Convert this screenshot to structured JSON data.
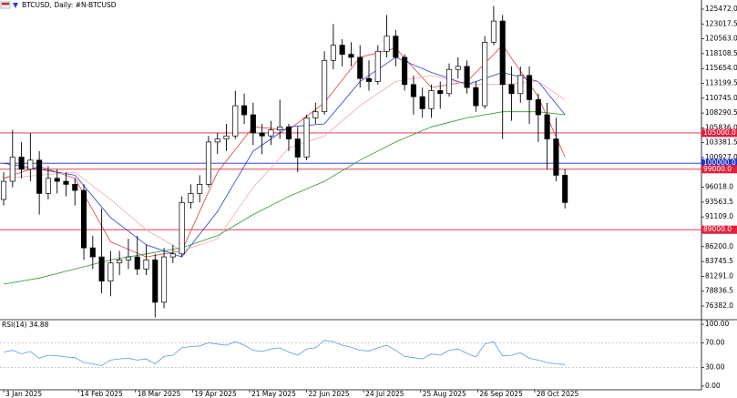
{
  "chart_data": [
    {
      "type": "candlestick",
      "title": "BTCUSD, Daily:  #N-BTCUSD",
      "open": [
        94000,
        97000,
        101000,
        99000,
        100500,
        95000,
        97500,
        97000,
        96500,
        95500,
        86000,
        84500,
        80500,
        83500,
        84000,
        84500,
        82500,
        84000,
        77000,
        84500,
        85000,
        93500,
        95000,
        96500,
        103500,
        104000,
        104500,
        109500,
        108000,
        105000,
        104500,
        105500,
        106000,
        104000,
        101000,
        107500,
        108500,
        117000,
        119500,
        118000,
        117500,
        114000,
        113500,
        118500,
        121000,
        117500,
        113000,
        111000,
        109000,
        112000,
        111500,
        115500,
        116000,
        112500,
        109500,
        120000,
        123500,
        113000,
        111500,
        114500,
        110500,
        108000,
        104000,
        98000
      ],
      "high": [
        98500,
        105500,
        103500,
        105000,
        102000,
        99500,
        99000,
        98500,
        97500,
        96500,
        88000,
        92500,
        85500,
        85500,
        87500,
        88000,
        86500,
        85000,
        86000,
        86500,
        94500,
        96500,
        98000,
        104500,
        105000,
        106500,
        112000,
        111500,
        110000,
        106500,
        107000,
        110500,
        106500,
        106000,
        108000,
        110000,
        118500,
        123000,
        120500,
        120000,
        119500,
        117000,
        119500,
        124500,
        122000,
        118000,
        114500,
        112500,
        113000,
        113500,
        116500,
        117500,
        117000,
        113500,
        121000,
        126000,
        124500,
        116000,
        116000,
        116000,
        111500,
        110000,
        107500,
        99000
      ],
      "low": [
        93000,
        96000,
        97500,
        97000,
        91500,
        94000,
        95000,
        94500,
        93000,
        84000,
        82500,
        78500,
        78000,
        81500,
        82500,
        81500,
        81500,
        74500,
        76000,
        83500,
        84500,
        92500,
        93500,
        96000,
        101500,
        102000,
        104000,
        106500,
        103000,
        101500,
        103000,
        104000,
        102000,
        98500,
        100500,
        106500,
        108000,
        115500,
        116000,
        116000,
        112500,
        112000,
        113000,
        117500,
        116000,
        112000,
        108000,
        107500,
        107500,
        109000,
        111000,
        114000,
        111500,
        108500,
        109000,
        119500,
        104000,
        107000,
        110000,
        106500,
        103500,
        99000,
        97000,
        92500
      ],
      "close": [
        97000,
        101000,
        99000,
        100500,
        95000,
        97500,
        97000,
        96500,
        95500,
        86000,
        84500,
        80500,
        83500,
        84000,
        84500,
        82500,
        84000,
        77000,
        84500,
        85000,
        93500,
        95000,
        96500,
        103500,
        104000,
        104500,
        109500,
        108000,
        105000,
        104500,
        105500,
        106000,
        104000,
        101000,
        107500,
        108500,
        117000,
        119500,
        118000,
        117500,
        114000,
        113500,
        118500,
        121000,
        117500,
        113000,
        111000,
        109000,
        112000,
        111500,
        115500,
        116000,
        112500,
        109500,
        120000,
        123500,
        113000,
        111500,
        114500,
        110500,
        108000,
        104000,
        98000,
        93500
      ],
      "series_x": [
        0,
        4,
        8,
        12,
        16,
        20,
        24,
        28,
        32,
        36,
        40,
        44,
        48,
        52,
        56,
        60,
        63
      ],
      "series": [
        {
          "color": "#e03a3a",
          "values": [
            97500,
            99500,
            97500,
            87000,
            84500,
            85500,
            98500,
            106000,
            105500,
            110000,
            117500,
            119000,
            112500,
            113500,
            119500,
            111000,
            101000
          ]
        },
        {
          "color": "#2a3ad8",
          "values": [
            100000,
            99000,
            98000,
            91000,
            86500,
            84500,
            92000,
            102000,
            106000,
            106500,
            113500,
            117500,
            115000,
            113000,
            115000,
            113500,
            108000
          ]
        },
        {
          "color": "#f0a8a8",
          "values": [
            97500,
            98000,
            98500,
            94000,
            89000,
            85500,
            87500,
            96000,
            102500,
            104500,
            109500,
            113500,
            114500,
            113000,
            113000,
            113500,
            110500
          ]
        },
        {
          "color": "#2e9a2e",
          "values": [
            80000,
            81000,
            82500,
            84000,
            85000,
            86000,
            88000,
            91500,
            94500,
            97000,
            100500,
            103500,
            106000,
            107500,
            108500,
            108500,
            108000
          ]
        }
      ],
      "levels": [
        {
          "value": 105000,
          "label": "105000.0",
          "color": "#e0203c"
        },
        {
          "value": 100000,
          "label": "100000.0",
          "color": "#1f2fd0"
        },
        {
          "value": 99000,
          "label": "99000.0",
          "color": "#e0203c"
        },
        {
          "value": 89000,
          "label": "89000.0",
          "color": "#e0203c"
        }
      ],
      "xlim": [
        -0.41,
        78.32
      ],
      "ylim": [
        74274,
        126978
      ],
      "yticks": [
        {
          "value": 125472,
          "label": "125472.0"
        },
        {
          "value": 123017.5,
          "label": "123017.5"
        },
        {
          "value": 120563,
          "label": "120563.0"
        },
        {
          "value": 118108.5,
          "label": "118108.5"
        },
        {
          "value": 115654,
          "label": "115654.0"
        },
        {
          "value": 113199.5,
          "label": "113199.5"
        },
        {
          "value": 110745,
          "label": "110745.0"
        },
        {
          "value": 108290.5,
          "label": "108290.5"
        },
        {
          "value": 105836,
          "label": "105836.0"
        },
        {
          "value": 103381.5,
          "label": "103381.5"
        },
        {
          "value": 100927,
          "label": "100927.0"
        },
        {
          "value": 96018,
          "label": "96018.0"
        },
        {
          "value": 93563.5,
          "label": "93563.5"
        },
        {
          "value": 91109,
          "label": "91109.0"
        },
        {
          "value": 86200,
          "label": "86200.0"
        },
        {
          "value": 83745.5,
          "label": "83745.5"
        },
        {
          "value": 81291,
          "label": "81291.0"
        },
        {
          "value": 78836.5,
          "label": "78836.5"
        },
        {
          "value": 76382,
          "label": "76382.0"
        }
      ],
      "xticks": [
        {
          "value": 0,
          "label": "3 Jan 2025"
        },
        {
          "value": 8.4,
          "label": "14 Feb 2025"
        },
        {
          "value": 14.8,
          "label": "18 Mar 2025"
        },
        {
          "value": 21.2,
          "label": "19 Apr 2025"
        },
        {
          "value": 27.6,
          "label": "21 May 2025"
        },
        {
          "value": 34,
          "label": "22 Jun 2025"
        },
        {
          "value": 40.4,
          "label": "24 Jul 2025"
        },
        {
          "value": 46.8,
          "label": "25 Aug 2025"
        },
        {
          "value": 53.2,
          "label": "26 Sep 2025"
        },
        {
          "value": 59.6,
          "label": "28 Oct 2025"
        }
      ]
    },
    {
      "type": "line",
      "title": "RSI(14) 34.88",
      "color": "#5a9be0",
      "values": [
        55,
        58,
        52,
        56,
        45,
        50,
        49,
        47,
        46,
        38,
        36,
        33,
        42,
        44,
        45,
        42,
        44,
        36,
        48,
        50,
        62,
        64,
        65,
        70,
        68,
        66,
        72,
        66,
        58,
        56,
        60,
        62,
        55,
        50,
        60,
        62,
        74,
        72,
        66,
        63,
        58,
        57,
        62,
        66,
        58,
        48,
        46,
        44,
        52,
        50,
        58,
        60,
        53,
        47,
        68,
        72,
        49,
        50,
        54,
        45,
        42,
        38,
        36,
        34.88
      ],
      "levels": [
        70,
        30
      ],
      "xlim": [
        -0.41,
        78.32
      ],
      "ylim": [
        -6,
        106
      ],
      "yticks": [
        {
          "value": 100,
          "label": "100.00"
        },
        {
          "value": 70,
          "label": "70.00"
        },
        {
          "value": 30,
          "label": "30.00"
        },
        {
          "value": 0,
          "label": "0.00"
        }
      ]
    }
  ]
}
